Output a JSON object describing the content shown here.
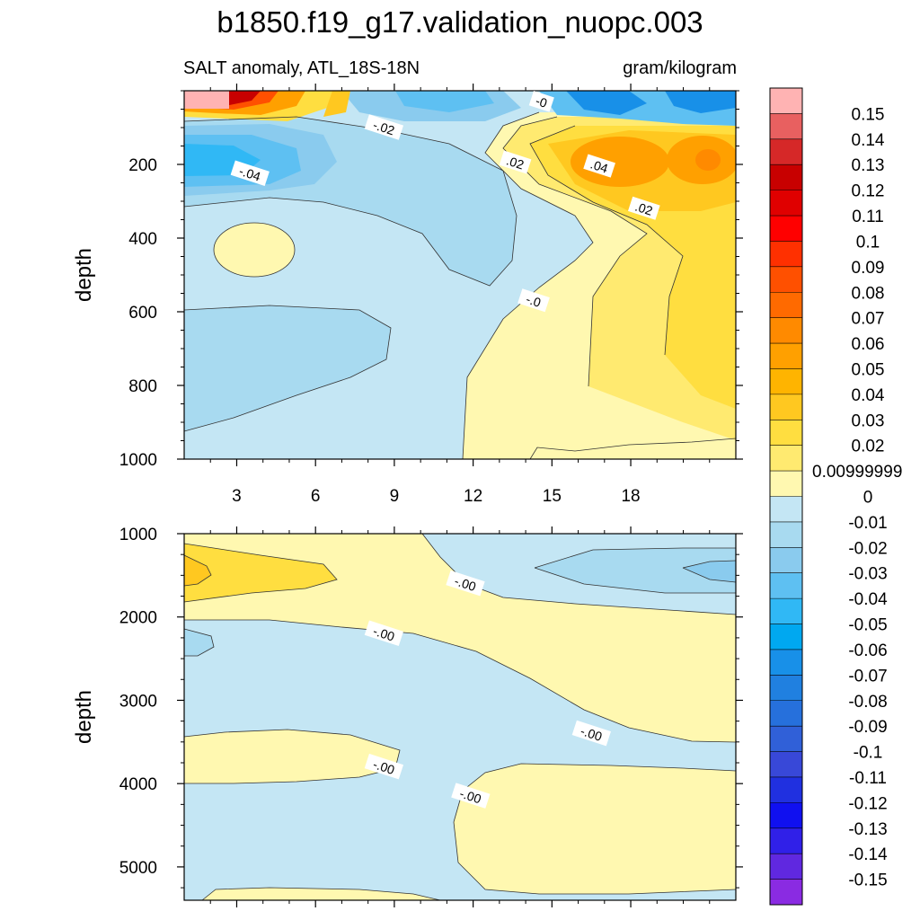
{
  "title": "b1850.f19_g17.validation_nuopc.003",
  "chart_data": {
    "type": "contour",
    "left_label": "SALT anomaly, ATL_18S-18N",
    "units_label": "gram/kilogram",
    "colorbar": {
      "levels": [
        "0.15",
        "0.14",
        "0.13",
        "0.12",
        "0.11",
        "0.1",
        "0.09",
        "0.08",
        "0.07",
        "0.06",
        "0.05",
        "0.04",
        "0.03",
        "0.02",
        "0.00999999",
        "0",
        "-0.01",
        "-0.02",
        "-0.03",
        "-0.04",
        "-0.05",
        "-0.06",
        "-0.07",
        "-0.08",
        "-0.09",
        "-0.1",
        "-0.11",
        "-0.12",
        "-0.13",
        "-0.14",
        "-0.15"
      ],
      "colors": [
        "#FFB3B3",
        "#E86060",
        "#D62828",
        "#C80000",
        "#E00000",
        "#FF0000",
        "#FF3000",
        "#FF5000",
        "#FF6A00",
        "#FF8A00",
        "#FFA000",
        "#FFB400",
        "#FFC820",
        "#FFDE40",
        "#FFEA70",
        "#FFF8B0",
        "#C4E6F4",
        "#A8DAF0",
        "#8ACBEE",
        "#5EC0F2",
        "#30B8F5",
        "#00A8F0",
        "#1890E8",
        "#2080E0",
        "#2670DC",
        "#3060D8",
        "#3848D8",
        "#2030E0",
        "#1010F0",
        "#3020E8",
        "#6028E0",
        "#8A2BE2"
      ]
    },
    "panels": [
      {
        "name": "upper",
        "ylabel": "depth",
        "yticks": [
          200,
          400,
          600,
          800,
          1000
        ],
        "ylim": [
          0,
          1000
        ],
        "xlim": [
          1,
          22
        ],
        "xticks": [
          3,
          6,
          9,
          12,
          15,
          18
        ],
        "xtick_labels": [
          "3",
          "6",
          "9",
          "12",
          "15",
          "18"
        ],
        "contour_labels": [
          {
            "text": "-.02",
            "x": 8.6,
            "y": 100
          },
          {
            "text": "-0",
            "x": 14.6,
            "y": 30
          },
          {
            "text": "-.04",
            "x": 3.5,
            "y": 225
          },
          {
            "text": ".02",
            "x": 13.6,
            "y": 195
          },
          {
            "text": ".04",
            "x": 16.8,
            "y": 205
          },
          {
            "text": ".02",
            "x": 18.5,
            "y": 320
          },
          {
            "text": "-.0",
            "x": 14.3,
            "y": 570
          }
        ]
      },
      {
        "name": "lower",
        "ylabel": "depth",
        "yticks": [
          1000,
          2000,
          3000,
          4000,
          5000
        ],
        "ylim": [
          1000,
          5400
        ],
        "xlim": [
          1,
          22
        ],
        "contour_labels": [
          {
            "text": "-.00",
            "x": 11.7,
            "y": 1600
          },
          {
            "text": "-.00",
            "x": 8.6,
            "y": 2200
          },
          {
            "text": "-.00",
            "x": 16.5,
            "y": 3400
          },
          {
            "text": "-.00",
            "x": 8.6,
            "y": 3800
          },
          {
            "text": "-.00",
            "x": 11.9,
            "y": 4150
          }
        ]
      }
    ]
  }
}
